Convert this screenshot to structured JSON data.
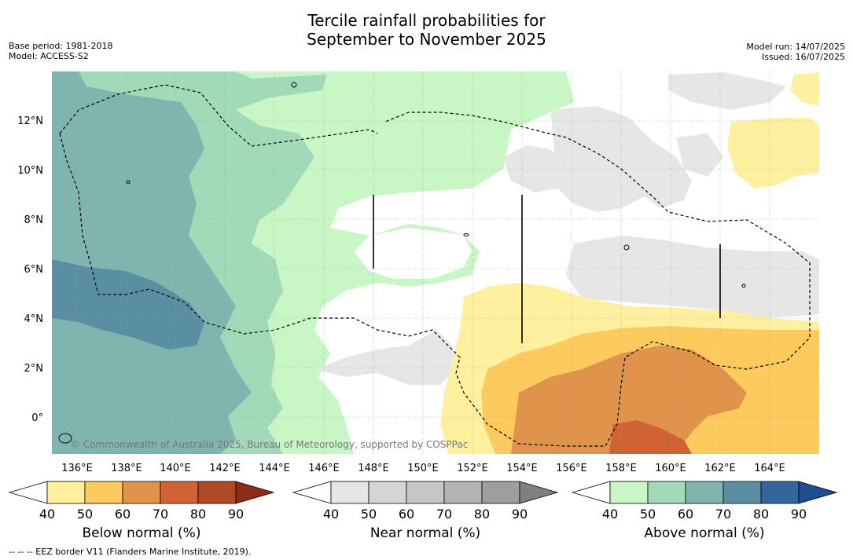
{
  "title": {
    "line1": "Tercile rainfall probabilities for",
    "line2": "September to November 2025"
  },
  "meta": {
    "base_period": "Base period: 1981-2018",
    "model": "Model: ACCESS-S2",
    "model_run": "Model run: 14/07/2025",
    "issued": "Issued: 16/07/2025"
  },
  "map": {
    "copyright": "© Commonwealth of Australia 2025, Bureau of Meteorology, supported by COSPPac",
    "lon_ticks": [
      "136°E",
      "138°E",
      "140°E",
      "142°E",
      "144°E",
      "146°E",
      "148°E",
      "150°E",
      "152°E",
      "154°E",
      "156°E",
      "158°E",
      "160°E",
      "162°E",
      "164°E"
    ],
    "lat_ticks": [
      "12°N",
      "10°N",
      "8°N",
      "6°N",
      "4°N",
      "2°N",
      "0°"
    ],
    "colors": {
      "ocean_default": "#ffffff",
      "above": [
        "#c8f7c5",
        "#a2d9b9",
        "#7fb5ae",
        "#5a8fa3",
        "#336699",
        "#1f4e8c"
      ],
      "near": [
        "#e6e6e6",
        "#d5d5d5",
        "#c6c6c6",
        "#b3b3b3",
        "#9e9e9e",
        "#7f7f7f"
      ],
      "below": [
        "#fff0a0",
        "#fdca5d",
        "#e0934a",
        "#cf6334",
        "#b04a26",
        "#8c2d1a"
      ]
    }
  },
  "colorbars": [
    {
      "label": "Below normal (%)",
      "ticks": [
        "40",
        "50",
        "60",
        "70",
        "80",
        "90"
      ]
    },
    {
      "label": "Near normal (%)",
      "ticks": [
        "40",
        "50",
        "60",
        "70",
        "80",
        "90"
      ]
    },
    {
      "label": "Above normal (%)",
      "ticks": [
        "40",
        "50",
        "60",
        "70",
        "80",
        "90"
      ]
    }
  ],
  "footer": "--  --  -- EEZ border V11 (Flanders Marine Institute, 2019)."
}
